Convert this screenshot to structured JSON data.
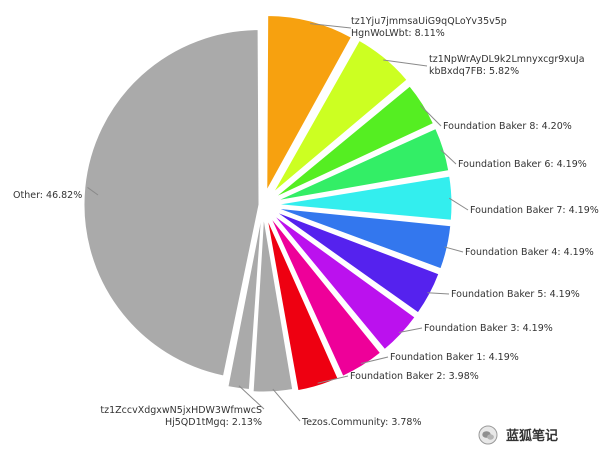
{
  "chart_data": {
    "type": "pie",
    "exploded": true,
    "start_angle_deg": 0,
    "direction": "clockwise",
    "slices": [
      {
        "label_lines": [
          "tz1Yju7jmmsaUiG9qQLoYv35v5p",
          "HgnWoLWbt: 8.11%"
        ],
        "value": 8.11,
        "color": "#f7a10f"
      },
      {
        "label_lines": [
          "tz1NpWrAyDL9k2Lmnyxcgr9xuJa",
          "kbBxdq7FB: 5.82%"
        ],
        "value": 5.82,
        "color": "#ccff22"
      },
      {
        "label_lines": [
          "Foundation Baker 8: 4.20%"
        ],
        "value": 4.2,
        "color": "#55ee22"
      },
      {
        "label_lines": [
          "Foundation Baker 6: 4.19%"
        ],
        "value": 4.19,
        "color": "#33ee66"
      },
      {
        "label_lines": [
          "Foundation Baker 7: 4.19%"
        ],
        "value": 4.19,
        "color": "#33eeee"
      },
      {
        "label_lines": [
          "Foundation Baker 4: 4.19%"
        ],
        "value": 4.19,
        "color": "#3377ee"
      },
      {
        "label_lines": [
          "Foundation Baker 5: 4.19%"
        ],
        "value": 4.19,
        "color": "#5522ee"
      },
      {
        "label_lines": [
          "Foundation Baker 3: 4.19%"
        ],
        "value": 4.19,
        "color": "#bb11ee"
      },
      {
        "label_lines": [
          "Foundation Baker 1: 4.19%"
        ],
        "value": 4.19,
        "color": "#ee0099"
      },
      {
        "label_lines": [
          "Foundation Baker 2: 3.98%"
        ],
        "value": 3.98,
        "color": "#ee0011"
      },
      {
        "label_lines": [
          "Tezos.Community: 3.78%"
        ],
        "value": 3.78,
        "color": "#aaaaaa"
      },
      {
        "label_lines": [
          "tz1ZccvXdgxwN5jxHDW3WfmwcS",
          "Hj5QD1tMgq: 2.13%"
        ],
        "value": 2.13,
        "color": "#aaaaaa"
      },
      {
        "label_lines": [
          "Other: 46.82%"
        ],
        "value": 46.82,
        "color": "#aaaaaa"
      }
    ]
  },
  "watermark": {
    "text": "蓝狐笔记",
    "icon": "wechat-icon"
  }
}
